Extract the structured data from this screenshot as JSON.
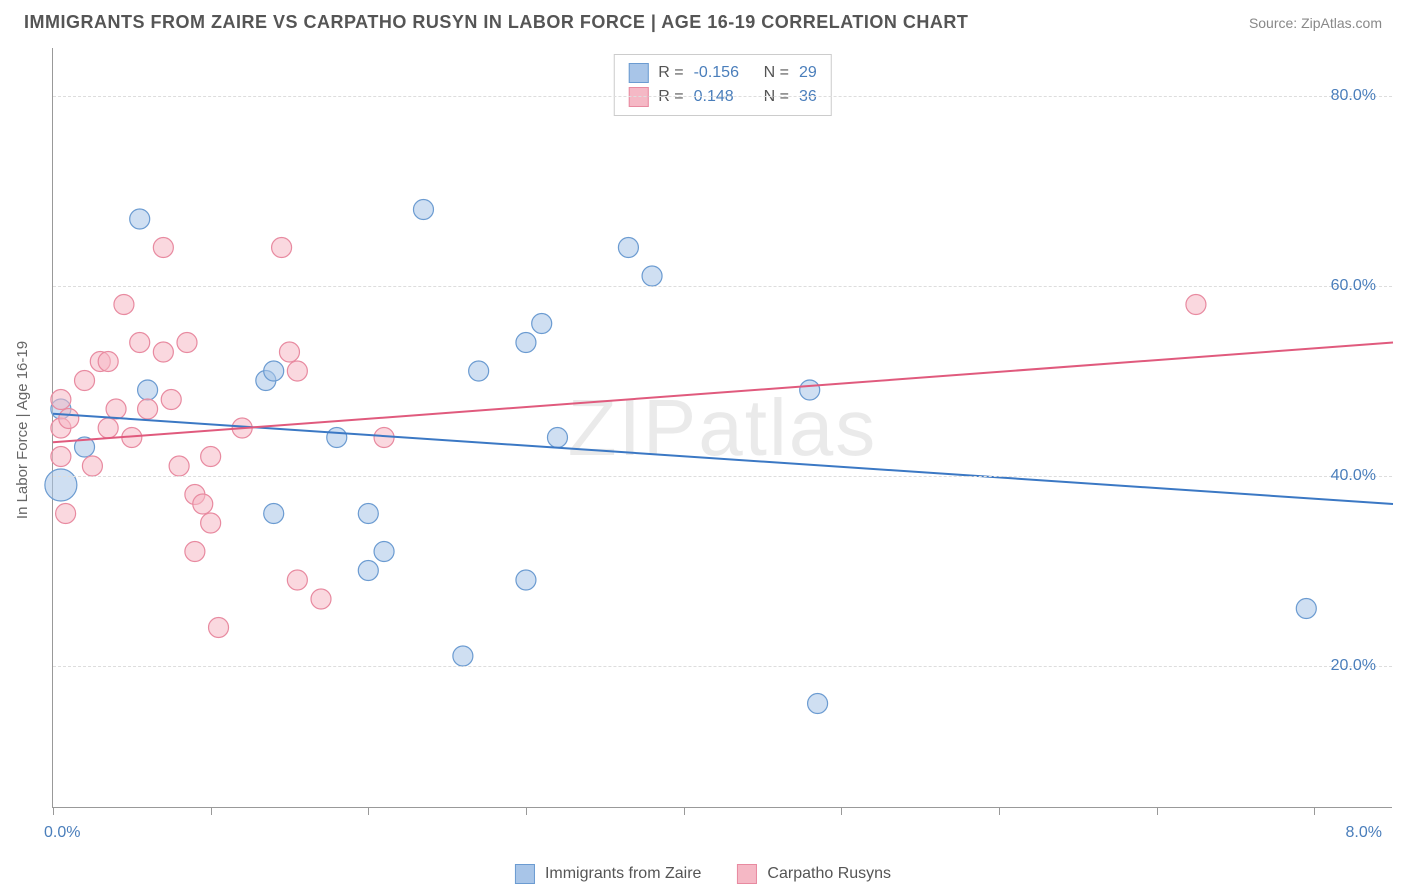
{
  "title": "IMMIGRANTS FROM ZAIRE VS CARPATHO RUSYN IN LABOR FORCE | AGE 16-19 CORRELATION CHART",
  "source": "Source: ZipAtlas.com",
  "y_axis_title": "In Labor Force | Age 16-19",
  "watermark": "ZIPatlas",
  "chart": {
    "type": "scatter",
    "xlim": [
      0,
      8.5
    ],
    "ylim": [
      5,
      85
    ],
    "x_ticks": [
      0,
      1,
      2,
      3,
      4,
      5,
      6,
      7,
      8
    ],
    "x_tick_labels": {
      "0": "0.0%",
      "8": "8.0%"
    },
    "y_ticks": [
      20,
      40,
      60,
      80
    ],
    "y_tick_labels": [
      "20.0%",
      "40.0%",
      "60.0%",
      "80.0%"
    ],
    "grid_color": "#dddddd",
    "axis_color": "#999999",
    "background_color": "#ffffff"
  },
  "series": [
    {
      "name": "Immigrants from Zaire",
      "color_fill": "#a8c5e8",
      "color_stroke": "#6b9bd1",
      "fill_opacity": 0.55,
      "marker_radius": 10,
      "R": "-0.156",
      "N": "29",
      "trend": {
        "x1": 0,
        "y1": 46.5,
        "x2": 8.5,
        "y2": 37.0,
        "color": "#3b78c4",
        "width": 2
      },
      "points": [
        {
          "x": 0.05,
          "y": 39,
          "r": 16
        },
        {
          "x": 0.05,
          "y": 47,
          "r": 10
        },
        {
          "x": 0.2,
          "y": 43,
          "r": 10
        },
        {
          "x": 0.55,
          "y": 67,
          "r": 10
        },
        {
          "x": 0.6,
          "y": 49,
          "r": 10
        },
        {
          "x": 1.35,
          "y": 50,
          "r": 10
        },
        {
          "x": 1.4,
          "y": 51,
          "r": 10
        },
        {
          "x": 1.4,
          "y": 36,
          "r": 10
        },
        {
          "x": 1.8,
          "y": 44,
          "r": 10
        },
        {
          "x": 2.0,
          "y": 30,
          "r": 10
        },
        {
          "x": 2.0,
          "y": 36,
          "r": 10
        },
        {
          "x": 2.1,
          "y": 32,
          "r": 10
        },
        {
          "x": 2.35,
          "y": 68,
          "r": 10
        },
        {
          "x": 2.6,
          "y": 21,
          "r": 10
        },
        {
          "x": 2.7,
          "y": 51,
          "r": 10
        },
        {
          "x": 3.0,
          "y": 54,
          "r": 10
        },
        {
          "x": 3.0,
          "y": 29,
          "r": 10
        },
        {
          "x": 3.1,
          "y": 56,
          "r": 10
        },
        {
          "x": 3.2,
          "y": 44,
          "r": 10
        },
        {
          "x": 3.65,
          "y": 64,
          "r": 10
        },
        {
          "x": 3.8,
          "y": 61,
          "r": 10
        },
        {
          "x": 4.8,
          "y": 49,
          "r": 10
        },
        {
          "x": 4.85,
          "y": 16,
          "r": 10
        },
        {
          "x": 7.95,
          "y": 26,
          "r": 10
        }
      ]
    },
    {
      "name": "Carpatho Rusyns",
      "color_fill": "#f5b8c5",
      "color_stroke": "#e88aa0",
      "fill_opacity": 0.55,
      "marker_radius": 10,
      "R": "0.148",
      "N": "36",
      "trend": {
        "x1": 0,
        "y1": 43.5,
        "x2": 8.5,
        "y2": 54.0,
        "color": "#e05a7d",
        "width": 2
      },
      "points": [
        {
          "x": 0.05,
          "y": 42,
          "r": 10
        },
        {
          "x": 0.05,
          "y": 45,
          "r": 10
        },
        {
          "x": 0.05,
          "y": 48,
          "r": 10
        },
        {
          "x": 0.08,
          "y": 36,
          "r": 10
        },
        {
          "x": 0.1,
          "y": 46,
          "r": 10
        },
        {
          "x": 0.2,
          "y": 50,
          "r": 10
        },
        {
          "x": 0.25,
          "y": 41,
          "r": 10
        },
        {
          "x": 0.3,
          "y": 52,
          "r": 10
        },
        {
          "x": 0.35,
          "y": 52,
          "r": 10
        },
        {
          "x": 0.35,
          "y": 45,
          "r": 10
        },
        {
          "x": 0.4,
          "y": 47,
          "r": 10
        },
        {
          "x": 0.45,
          "y": 58,
          "r": 10
        },
        {
          "x": 0.5,
          "y": 44,
          "r": 10
        },
        {
          "x": 0.55,
          "y": 54,
          "r": 10
        },
        {
          "x": 0.6,
          "y": 47,
          "r": 10
        },
        {
          "x": 0.7,
          "y": 64,
          "r": 10
        },
        {
          "x": 0.7,
          "y": 53,
          "r": 10
        },
        {
          "x": 0.75,
          "y": 48,
          "r": 10
        },
        {
          "x": 0.8,
          "y": 41,
          "r": 10
        },
        {
          "x": 0.85,
          "y": 54,
          "r": 10
        },
        {
          "x": 0.9,
          "y": 32,
          "r": 10
        },
        {
          "x": 0.9,
          "y": 38,
          "r": 10
        },
        {
          "x": 0.95,
          "y": 37,
          "r": 10
        },
        {
          "x": 1.0,
          "y": 42,
          "r": 10
        },
        {
          "x": 1.0,
          "y": 35,
          "r": 10
        },
        {
          "x": 1.05,
          "y": 24,
          "r": 10
        },
        {
          "x": 1.2,
          "y": 45,
          "r": 10
        },
        {
          "x": 1.45,
          "y": 64,
          "r": 10
        },
        {
          "x": 1.5,
          "y": 53,
          "r": 10
        },
        {
          "x": 1.55,
          "y": 51,
          "r": 10
        },
        {
          "x": 1.55,
          "y": 29,
          "r": 10
        },
        {
          "x": 1.7,
          "y": 27,
          "r": 10
        },
        {
          "x": 2.1,
          "y": 44,
          "r": 10
        },
        {
          "x": 7.25,
          "y": 58,
          "r": 10
        }
      ]
    }
  ],
  "legend_bottom": [
    {
      "label": "Immigrants from Zaire",
      "fill": "#a8c5e8",
      "stroke": "#6b9bd1"
    },
    {
      "label": "Carpatho Rusyns",
      "fill": "#f5b8c5",
      "stroke": "#e88aa0"
    }
  ]
}
